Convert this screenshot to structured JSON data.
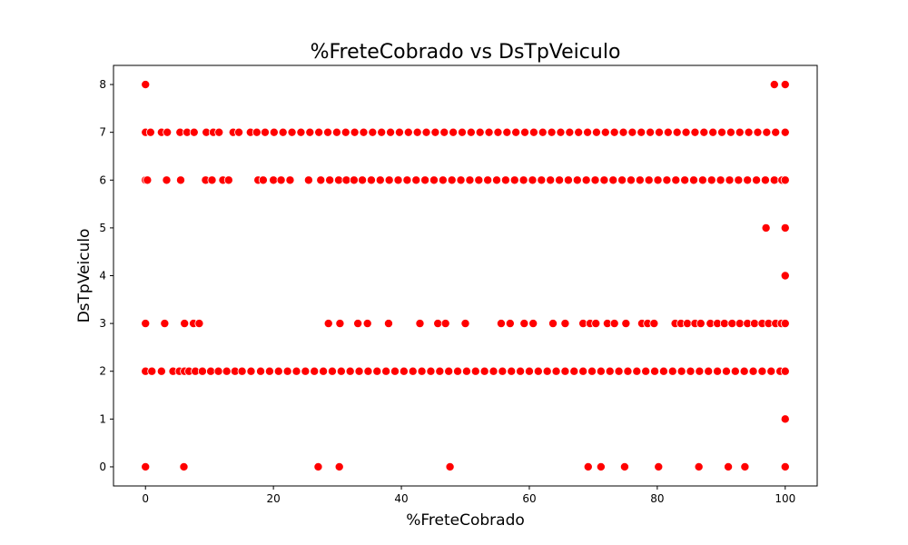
{
  "chart_data": {
    "type": "scatter",
    "title": "%FreteCobrado vs DsTpVeiculo",
    "xlabel": "%FreteCobrado",
    "ylabel": "DsTpVeiculo",
    "xlim": [
      -5,
      105
    ],
    "ylim": [
      -0.4,
      8.4
    ],
    "xticks": [
      0,
      20,
      40,
      60,
      80,
      100
    ],
    "yticks": [
      0,
      1,
      2,
      3,
      4,
      5,
      6,
      7,
      8
    ],
    "grid": false,
    "legend": "none",
    "marker_color": "#ff0000",
    "marker_edge": "#ffffff",
    "series": [
      {
        "values": [
          [
            0,
            0
          ],
          [
            6,
            0
          ],
          [
            27,
            0
          ],
          [
            30.3,
            0
          ],
          [
            47.6,
            0
          ],
          [
            69.2,
            0
          ],
          [
            71.2,
            0
          ],
          [
            74.9,
            0
          ],
          [
            80.2,
            0
          ],
          [
            86.5,
            0
          ],
          [
            91.1,
            0
          ],
          [
            93.7,
            0
          ],
          [
            100,
            0
          ],
          [
            100,
            1
          ],
          [
            0,
            2
          ],
          [
            1,
            2
          ],
          [
            2.5,
            2
          ],
          [
            4.3,
            2
          ],
          [
            5.3,
            2
          ],
          [
            6.1,
            2
          ],
          [
            6.8,
            2
          ],
          [
            7.8,
            2
          ],
          [
            8.9,
            2
          ],
          [
            10.2,
            2
          ],
          [
            11.4,
            2
          ],
          [
            12.7,
            2
          ],
          [
            14,
            2
          ],
          [
            15.1,
            2
          ],
          [
            16.5,
            2
          ],
          [
            18,
            2
          ],
          [
            19.4,
            2
          ],
          [
            20.8,
            2
          ],
          [
            22.2,
            2
          ],
          [
            23.6,
            2
          ],
          [
            25,
            2
          ],
          [
            26.4,
            2
          ],
          [
            27.8,
            2
          ],
          [
            29.2,
            2
          ],
          [
            30.6,
            2
          ],
          [
            32,
            2
          ],
          [
            33.4,
            2
          ],
          [
            34.8,
            2
          ],
          [
            36.2,
            2
          ],
          [
            37.6,
            2
          ],
          [
            39,
            2
          ],
          [
            40.4,
            2
          ],
          [
            41.8,
            2
          ],
          [
            43.2,
            2
          ],
          [
            44.6,
            2
          ],
          [
            46,
            2
          ],
          [
            47.4,
            2
          ],
          [
            48.8,
            2
          ],
          [
            50.2,
            2
          ],
          [
            51.6,
            2
          ],
          [
            53,
            2
          ],
          [
            54.4,
            2
          ],
          [
            55.8,
            2
          ],
          [
            57.2,
            2
          ],
          [
            58.6,
            2
          ],
          [
            60,
            2
          ],
          [
            61.4,
            2
          ],
          [
            62.8,
            2
          ],
          [
            64.2,
            2
          ],
          [
            65.6,
            2
          ],
          [
            67,
            2
          ],
          [
            68.4,
            2
          ],
          [
            69.8,
            2
          ],
          [
            71.2,
            2
          ],
          [
            72.6,
            2
          ],
          [
            74,
            2
          ],
          [
            75.4,
            2
          ],
          [
            76.8,
            2
          ],
          [
            78.2,
            2
          ],
          [
            79.6,
            2
          ],
          [
            81,
            2
          ],
          [
            82.4,
            2
          ],
          [
            83.8,
            2
          ],
          [
            85.2,
            2
          ],
          [
            86.6,
            2
          ],
          [
            88,
            2
          ],
          [
            89.4,
            2
          ],
          [
            90.8,
            2
          ],
          [
            92.2,
            2
          ],
          [
            93.6,
            2
          ],
          [
            95,
            2
          ],
          [
            96.4,
            2
          ],
          [
            97.8,
            2
          ],
          [
            99.2,
            2
          ],
          [
            100,
            2
          ],
          [
            0,
            3
          ],
          [
            3,
            3
          ],
          [
            6.1,
            3
          ],
          [
            7.5,
            3
          ],
          [
            8.4,
            3
          ],
          [
            28.6,
            3
          ],
          [
            30.4,
            3
          ],
          [
            33.2,
            3
          ],
          [
            34.7,
            3
          ],
          [
            38,
            3
          ],
          [
            42.9,
            3
          ],
          [
            45.7,
            3
          ],
          [
            46.9,
            3
          ],
          [
            50,
            3
          ],
          [
            55.6,
            3
          ],
          [
            57,
            3
          ],
          [
            59.2,
            3
          ],
          [
            60.6,
            3
          ],
          [
            63.7,
            3
          ],
          [
            65.6,
            3
          ],
          [
            68.4,
            3
          ],
          [
            69.5,
            3
          ],
          [
            70.4,
            3
          ],
          [
            72.2,
            3
          ],
          [
            73.3,
            3
          ],
          [
            75.1,
            3
          ],
          [
            77.6,
            3
          ],
          [
            78.5,
            3
          ],
          [
            79.5,
            3
          ],
          [
            82.8,
            3
          ],
          [
            83.7,
            3
          ],
          [
            84.7,
            3
          ],
          [
            85.9,
            3
          ],
          [
            86.8,
            3
          ],
          [
            88.3,
            3
          ],
          [
            89.4,
            3
          ],
          [
            90.5,
            3
          ],
          [
            91.7,
            3
          ],
          [
            92.9,
            3
          ],
          [
            94.1,
            3
          ],
          [
            95.2,
            3
          ],
          [
            96.4,
            3
          ],
          [
            97.4,
            3
          ],
          [
            98.5,
            3
          ],
          [
            99.4,
            3
          ],
          [
            100,
            3
          ],
          [
            100,
            4
          ],
          [
            97,
            5
          ],
          [
            100,
            5
          ],
          [
            0,
            6
          ],
          [
            0.3,
            6
          ],
          [
            3.3,
            6
          ],
          [
            5.5,
            6
          ],
          [
            9.4,
            6
          ],
          [
            10.4,
            6
          ],
          [
            12.1,
            6
          ],
          [
            13,
            6
          ],
          [
            17.6,
            6
          ],
          [
            18.4,
            6
          ],
          [
            20,
            6
          ],
          [
            21.2,
            6
          ],
          [
            22.6,
            6
          ],
          [
            25.5,
            6
          ],
          [
            27.4,
            6
          ],
          [
            28.8,
            6
          ],
          [
            30.2,
            6
          ],
          [
            31.4,
            6
          ],
          [
            32.6,
            6
          ],
          [
            33.9,
            6
          ],
          [
            35.3,
            6
          ],
          [
            36.7,
            6
          ],
          [
            38.1,
            6
          ],
          [
            39.5,
            6
          ],
          [
            40.9,
            6
          ],
          [
            42.3,
            6
          ],
          [
            43.7,
            6
          ],
          [
            45.1,
            6
          ],
          [
            46.5,
            6
          ],
          [
            47.9,
            6
          ],
          [
            49.3,
            6
          ],
          [
            50.7,
            6
          ],
          [
            52.1,
            6
          ],
          [
            53.5,
            6
          ],
          [
            54.9,
            6
          ],
          [
            56.3,
            6
          ],
          [
            57.7,
            6
          ],
          [
            59.1,
            6
          ],
          [
            60.5,
            6
          ],
          [
            61.9,
            6
          ],
          [
            63.3,
            6
          ],
          [
            64.7,
            6
          ],
          [
            66.1,
            6
          ],
          [
            67.5,
            6
          ],
          [
            68.9,
            6
          ],
          [
            70.3,
            6
          ],
          [
            71.7,
            6
          ],
          [
            73.1,
            6
          ],
          [
            74.5,
            6
          ],
          [
            75.9,
            6
          ],
          [
            77.3,
            6
          ],
          [
            78.7,
            6
          ],
          [
            80.1,
            6
          ],
          [
            81.5,
            6
          ],
          [
            82.9,
            6
          ],
          [
            84.3,
            6
          ],
          [
            85.7,
            6
          ],
          [
            87.1,
            6
          ],
          [
            88.5,
            6
          ],
          [
            89.9,
            6
          ],
          [
            91.3,
            6
          ],
          [
            92.7,
            6
          ],
          [
            94.1,
            6
          ],
          [
            95.5,
            6
          ],
          [
            96.9,
            6
          ],
          [
            98.3,
            6
          ],
          [
            99.5,
            6
          ],
          [
            100,
            6
          ],
          [
            0,
            7
          ],
          [
            0.8,
            7
          ],
          [
            2.5,
            7
          ],
          [
            3.4,
            7
          ],
          [
            5.4,
            7
          ],
          [
            6.5,
            7
          ],
          [
            7.6,
            7
          ],
          [
            9.5,
            7
          ],
          [
            10.6,
            7
          ],
          [
            11.5,
            7
          ],
          [
            13.7,
            7
          ],
          [
            14.6,
            7
          ],
          [
            16.4,
            7
          ],
          [
            17.4,
            7
          ],
          [
            18.7,
            7
          ],
          [
            20.1,
            7
          ],
          [
            21.5,
            7
          ],
          [
            22.9,
            7
          ],
          [
            24.3,
            7
          ],
          [
            25.7,
            7
          ],
          [
            27.1,
            7
          ],
          [
            28.5,
            7
          ],
          [
            29.9,
            7
          ],
          [
            31.3,
            7
          ],
          [
            32.7,
            7
          ],
          [
            34.1,
            7
          ],
          [
            35.5,
            7
          ],
          [
            36.9,
            7
          ],
          [
            38.3,
            7
          ],
          [
            39.7,
            7
          ],
          [
            41.1,
            7
          ],
          [
            42.5,
            7
          ],
          [
            43.9,
            7
          ],
          [
            45.3,
            7
          ],
          [
            46.7,
            7
          ],
          [
            48.1,
            7
          ],
          [
            49.5,
            7
          ],
          [
            50.9,
            7
          ],
          [
            52.3,
            7
          ],
          [
            53.7,
            7
          ],
          [
            55.1,
            7
          ],
          [
            56.5,
            7
          ],
          [
            57.9,
            7
          ],
          [
            59.3,
            7
          ],
          [
            60.7,
            7
          ],
          [
            62.1,
            7
          ],
          [
            63.5,
            7
          ],
          [
            64.9,
            7
          ],
          [
            66.3,
            7
          ],
          [
            67.7,
            7
          ],
          [
            69.1,
            7
          ],
          [
            70.5,
            7
          ],
          [
            71.9,
            7
          ],
          [
            73.3,
            7
          ],
          [
            74.7,
            7
          ],
          [
            76.1,
            7
          ],
          [
            77.5,
            7
          ],
          [
            78.9,
            7
          ],
          [
            80.3,
            7
          ],
          [
            81.7,
            7
          ],
          [
            83.1,
            7
          ],
          [
            84.5,
            7
          ],
          [
            85.9,
            7
          ],
          [
            87.3,
            7
          ],
          [
            88.7,
            7
          ],
          [
            90.1,
            7
          ],
          [
            91.5,
            7
          ],
          [
            92.9,
            7
          ],
          [
            94.3,
            7
          ],
          [
            95.7,
            7
          ],
          [
            97.1,
            7
          ],
          [
            98.5,
            7
          ],
          [
            100,
            7
          ],
          [
            0,
            8
          ],
          [
            98.3,
            8
          ],
          [
            100,
            8
          ]
        ]
      }
    ]
  }
}
